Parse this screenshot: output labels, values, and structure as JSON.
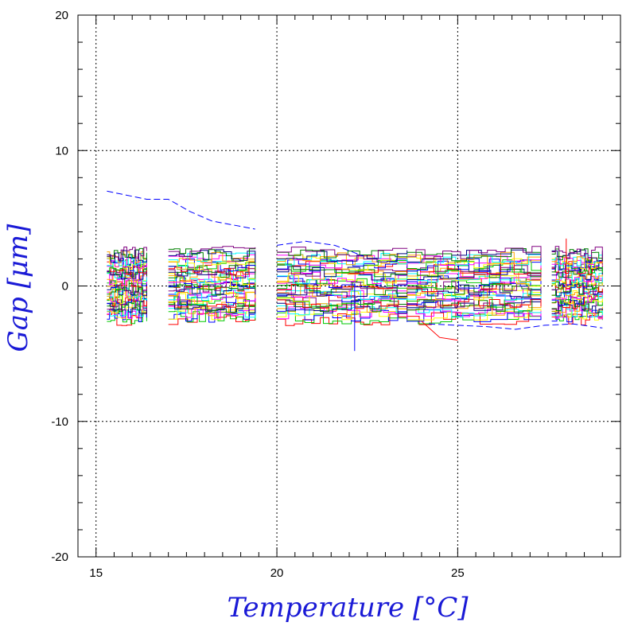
{
  "chart_data": {
    "type": "line",
    "title": "",
    "xlabel": "Temperature [°C]",
    "ylabel": "Gap [μm]",
    "xlim": [
      14.5,
      29.5
    ],
    "ylim": [
      -20,
      20
    ],
    "x_ticks": [
      "15",
      "20",
      "25"
    ],
    "y_ticks": [
      "20",
      "10",
      "0",
      "-10",
      "-20"
    ],
    "grid": "dotted at major ticks",
    "legend": "none",
    "series_colors": [
      "#ff0000",
      "#00c800",
      "#0000ff",
      "#ffff00",
      "#ff00ff",
      "#00ffff",
      "#ffa500",
      "#000080",
      "#008000",
      "#800080"
    ],
    "temperature_segments": [
      [
        15.3,
        16.4
      ],
      [
        17.0,
        19.4
      ],
      [
        20.0,
        23.6
      ],
      [
        23.6,
        27.3
      ],
      [
        27.6,
        29.0
      ]
    ],
    "series_band": {
      "center": 0,
      "spread": [
        -2.5,
        2.5
      ]
    },
    "outlier_series": [
      {
        "color": "#0000ff",
        "style": "dashed",
        "x": [
          15.3,
          16.4,
          17.0,
          17.6,
          18.2,
          19.4
        ],
        "y": [
          7.0,
          6.4,
          6.4,
          5.5,
          4.8,
          4.2
        ]
      },
      {
        "color": "#0000ff",
        "style": "dashed",
        "x": [
          20.0,
          20.8,
          21.6,
          22.4
        ],
        "y": [
          3.0,
          3.3,
          3.0,
          2.2
        ]
      },
      {
        "color": "#0000ff",
        "style": "dashed",
        "x": [
          24.2,
          25.0,
          25.8,
          26.6,
          27.4,
          28.2,
          29.0
        ],
        "y": [
          -2.8,
          -2.9,
          -3.0,
          -3.2,
          -2.9,
          -2.8,
          -3.1
        ]
      },
      {
        "color": "#0000ff",
        "style": "solid",
        "x": [
          22.15,
          22.15
        ],
        "y": [
          0.2,
          -4.8
        ]
      },
      {
        "color": "#ff0000",
        "style": "solid",
        "x": [
          24.0,
          24.5,
          25.0
        ],
        "y": [
          -2.6,
          -3.8,
          -4.0
        ]
      },
      {
        "color": "#ff0000",
        "style": "solid",
        "x": [
          28.0,
          28.0
        ],
        "y": [
          0.0,
          3.5
        ]
      }
    ]
  }
}
